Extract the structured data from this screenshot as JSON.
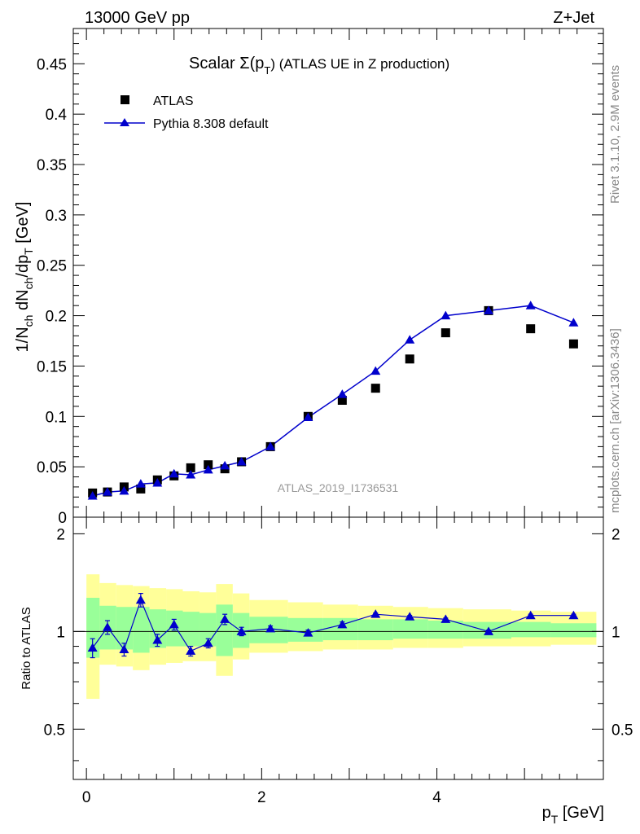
{
  "header": {
    "energy_label": "13000 GeV pp",
    "process_label": "Z+Jet"
  },
  "side_labels": {
    "rivet": "Rivet 3.1.10,  2.9M events",
    "mcplots": "mcplots.cern.ch [arXiv:1306.3436]"
  },
  "chart_data": [
    {
      "type": "scatter",
      "title_main": "Scalar Σ(p",
      "title_sub": "T",
      "title_tail": ") (ATLAS UE in Z production)",
      "ylabel": "1/N_ch dN_ch/dp_T [GeV]",
      "xlabel": "p_T [GeV]",
      "watermark": "ATLAS_2019_I1736531",
      "xlim": [
        -0.15,
        5.9
      ],
      "ylim": [
        0,
        0.485
      ],
      "y_ticks": [
        0,
        0.05,
        0.1,
        0.15,
        0.2,
        0.25,
        0.3,
        0.35,
        0.4,
        0.45
      ],
      "y_tick_labels": [
        "0",
        "0.05",
        "0.1",
        "0.15",
        "0.2",
        "0.25",
        "0.3",
        "0.35",
        "0.4",
        "0.45"
      ],
      "legend": {
        "position": "top-left",
        "entries": [
          "ATLAS",
          "Pythia 8.308 default"
        ]
      },
      "x": [
        0.07,
        0.24,
        0.43,
        0.62,
        0.81,
        1.0,
        1.19,
        1.39,
        1.58,
        1.77,
        2.1,
        2.53,
        2.92,
        3.3,
        3.69,
        4.1,
        4.59,
        5.07,
        5.56
      ],
      "series": [
        {
          "name": "ATLAS",
          "color": "#000000",
          "marker": "square",
          "values": [
            0.024,
            0.025,
            0.03,
            0.028,
            0.037,
            0.041,
            0.049,
            0.052,
            0.048,
            0.055,
            0.07,
            0.1,
            0.116,
            0.128,
            0.157,
            0.183,
            0.205,
            0.187,
            0.172
          ]
        },
        {
          "name": "Pythia 8.308 default",
          "color": "#0000cc",
          "marker": "triangle",
          "values": [
            0.021,
            0.025,
            0.026,
            0.033,
            0.034,
            0.043,
            0.042,
            0.047,
            0.051,
            0.055,
            0.07,
            0.099,
            0.122,
            0.145,
            0.176,
            0.2,
            0.205,
            0.21,
            0.193
          ]
        }
      ]
    },
    {
      "type": "line",
      "ylabel": "Ratio to ATLAS",
      "xlim": [
        -0.15,
        5.9
      ],
      "ylim": [
        0.35,
        2.25
      ],
      "y_ticks": [
        0.5,
        1,
        2
      ],
      "y_tick_labels": [
        "0.5",
        "1",
        "2"
      ],
      "x_ticks": [
        0,
        2,
        4
      ],
      "x_tick_labels": [
        "0",
        "2",
        "4"
      ],
      "reference": 1,
      "bins": [
        [
          0.0,
          0.15
        ],
        [
          0.15,
          0.34
        ],
        [
          0.34,
          0.53
        ],
        [
          0.53,
          0.72
        ],
        [
          0.72,
          0.91
        ],
        [
          0.91,
          1.1
        ],
        [
          1.1,
          1.29
        ],
        [
          1.29,
          1.48
        ],
        [
          1.48,
          1.67
        ],
        [
          1.67,
          1.86
        ],
        [
          1.86,
          2.3
        ],
        [
          2.3,
          2.7
        ],
        [
          2.7,
          3.1
        ],
        [
          3.1,
          3.5
        ],
        [
          3.5,
          3.9
        ],
        [
          3.9,
          4.3
        ],
        [
          4.3,
          4.85
        ],
        [
          4.85,
          5.3
        ],
        [
          5.3,
          5.82
        ]
      ],
      "band_inner": [
        [
          0.83,
          1.27
        ],
        [
          0.88,
          1.2
        ],
        [
          0.88,
          1.19
        ],
        [
          0.86,
          1.19
        ],
        [
          0.89,
          1.17
        ],
        [
          0.9,
          1.16
        ],
        [
          0.9,
          1.15
        ],
        [
          0.9,
          1.14
        ],
        [
          0.84,
          1.21
        ],
        [
          0.89,
          1.14
        ],
        [
          0.92,
          1.11
        ],
        [
          0.93,
          1.1
        ],
        [
          0.94,
          1.1
        ],
        [
          0.94,
          1.09
        ],
        [
          0.95,
          1.09
        ],
        [
          0.95,
          1.08
        ],
        [
          0.95,
          1.07
        ],
        [
          0.96,
          1.07
        ],
        [
          0.96,
          1.06
        ]
      ],
      "band_outer": [
        [
          0.62,
          1.5
        ],
        [
          0.79,
          1.41
        ],
        [
          0.78,
          1.39
        ],
        [
          0.76,
          1.38
        ],
        [
          0.79,
          1.36
        ],
        [
          0.8,
          1.35
        ],
        [
          0.81,
          1.33
        ],
        [
          0.81,
          1.32
        ],
        [
          0.73,
          1.4
        ],
        [
          0.82,
          1.31
        ],
        [
          0.86,
          1.25
        ],
        [
          0.87,
          1.23
        ],
        [
          0.88,
          1.21
        ],
        [
          0.88,
          1.2
        ],
        [
          0.89,
          1.19
        ],
        [
          0.89,
          1.18
        ],
        [
          0.9,
          1.17
        ],
        [
          0.9,
          1.16
        ],
        [
          0.91,
          1.15
        ]
      ],
      "series": [
        {
          "name": "Pythia 8.308 default",
          "color": "#0000cc",
          "marker": "triangle",
          "values": [
            0.89,
            1.03,
            0.88,
            1.25,
            0.94,
            1.05,
            0.87,
            0.92,
            1.09,
            1.0,
            1.02,
            0.99,
            1.05,
            1.13,
            1.11,
            1.09,
            1.0,
            1.12,
            1.12
          ],
          "err": [
            0.06,
            0.05,
            0.04,
            0.06,
            0.04,
            0.04,
            0.03,
            0.03,
            0.04,
            0.03,
            0.02,
            0.02,
            0.02,
            0.01,
            0.01,
            0.01,
            0.01,
            0.01,
            0.01
          ]
        }
      ],
      "legend": {
        "position": "none",
        "entries": []
      },
      "band_colors": {
        "inner": "#99ff99",
        "outer": "#ffff99"
      }
    }
  ]
}
